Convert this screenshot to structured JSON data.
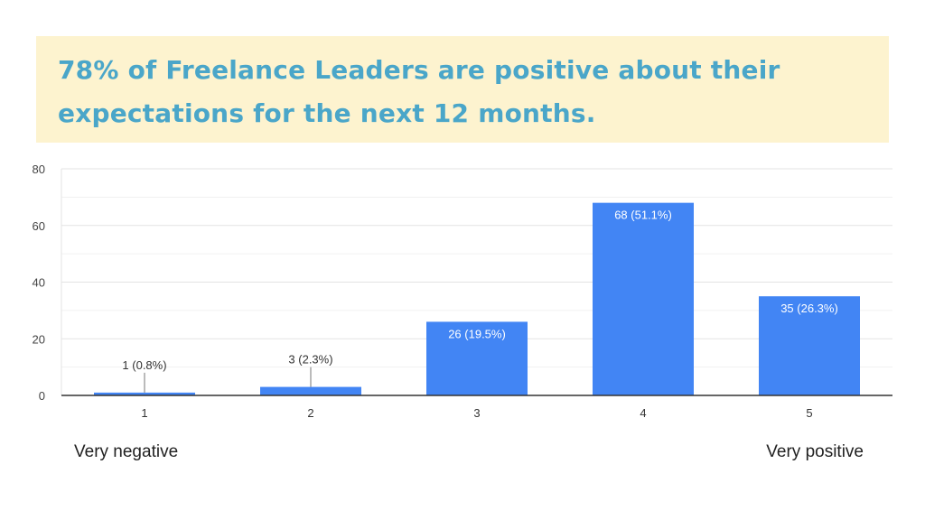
{
  "banner": {
    "line1": "78% of Freelance Leaders are positive about their",
    "line2": "expectations for the next 12 months."
  },
  "scale_labels": {
    "low": "Very negative",
    "high": "Very positive"
  },
  "colors": {
    "bar": "#4285f4",
    "banner_bg": "#fdf3cf",
    "banner_text": "#4aa6c9"
  },
  "chart_data": {
    "type": "bar",
    "categories": [
      "1",
      "2",
      "3",
      "4",
      "5"
    ],
    "values": [
      1,
      3,
      26,
      68,
      35
    ],
    "data_labels": [
      "1 (0.8%)",
      "3 (2.3%)",
      "26 (19.5%)",
      "68 (51.1%)",
      "35 (26.3%)"
    ],
    "yticks": [
      "0",
      "20",
      "40",
      "60",
      "80"
    ],
    "ylim": [
      0,
      80
    ],
    "title": "",
    "xlabel": "",
    "ylabel": "",
    "grid": true
  }
}
